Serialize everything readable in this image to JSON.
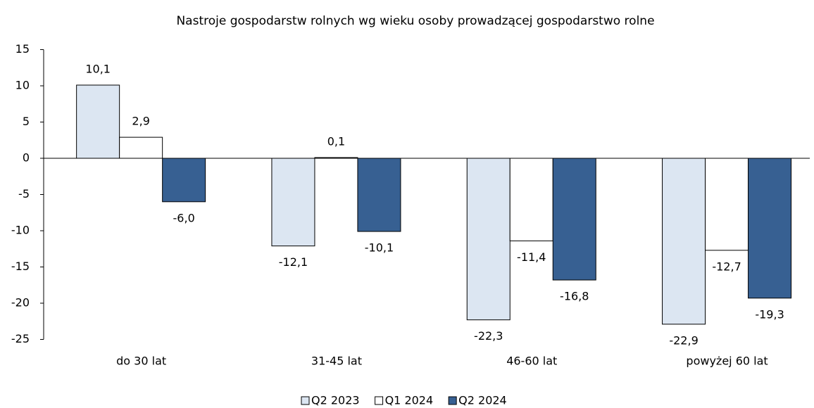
{
  "chart_data": {
    "type": "bar",
    "title": "Nastroje gospodarstw rolnych wg wieku osoby prowadzącej gospodarstwo rolne",
    "categories": [
      "do 30 lat",
      "31-45 lat",
      "46-60 lat",
      "powyżej 60 lat"
    ],
    "series": [
      {
        "name": "Q2 2023",
        "color": "#dce6f2",
        "values": [
          10.1,
          -12.1,
          -22.3,
          -22.9
        ],
        "value_labels": [
          "10,1",
          "-12,1",
          "-22,3",
          "-22,9"
        ]
      },
      {
        "name": "Q1 2024",
        "color": "#ffffff",
        "values": [
          2.9,
          0.1,
          -11.4,
          -12.7
        ],
        "value_labels": [
          "2,9",
          "0,1",
          "-11,4",
          "-12,7"
        ]
      },
      {
        "name": "Q2 2024",
        "color": "#376092",
        "values": [
          -6.0,
          -10.1,
          -16.8,
          -19.3
        ],
        "value_labels": [
          "-6,0",
          "-10,1",
          "-16,8",
          "-19,3"
        ]
      }
    ],
    "ylim": [
      -25,
      15
    ],
    "yticks": [
      15,
      10,
      5,
      0,
      -5,
      -10,
      -15,
      -20,
      -25
    ],
    "legend": "bottom"
  }
}
